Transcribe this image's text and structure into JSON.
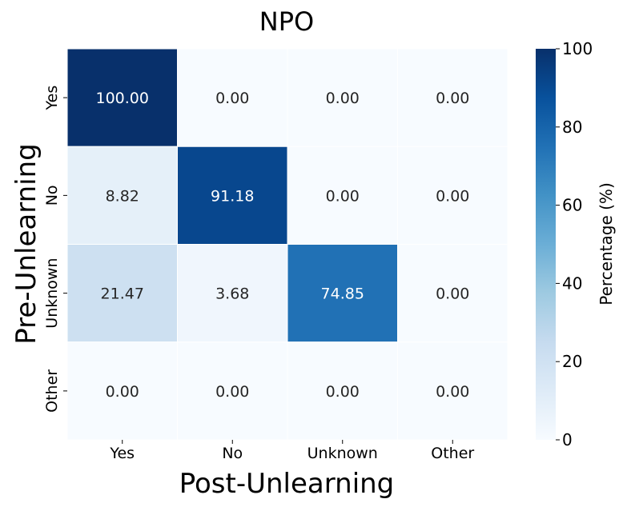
{
  "chart_data": {
    "type": "heatmap",
    "title": "NPO",
    "xlabel": "Post-Unlearning",
    "ylabel": "Pre-Unlearning",
    "x_categories": [
      "Yes",
      "No",
      "Unknown",
      "Other"
    ],
    "y_categories": [
      "Yes",
      "No",
      "Unknown",
      "Other"
    ],
    "values": [
      [
        100.0,
        0.0,
        0.0,
        0.0
      ],
      [
        8.82,
        91.18,
        0.0,
        0.0
      ],
      [
        21.47,
        3.68,
        74.85,
        0.0
      ],
      [
        0.0,
        0.0,
        0.0,
        0.0
      ]
    ],
    "value_labels": [
      [
        "100.00",
        "0.00",
        "0.00",
        "0.00"
      ],
      [
        "8.82",
        "91.18",
        "0.00",
        "0.00"
      ],
      [
        "21.47",
        "3.68",
        "74.85",
        "0.00"
      ],
      [
        "0.00",
        "0.00",
        "0.00",
        "0.00"
      ]
    ],
    "colorbar": {
      "label": "Percentage (%)",
      "range": [
        0,
        100
      ],
      "ticks": [
        0,
        20,
        40,
        60,
        80,
        100
      ],
      "tick_labels": [
        "0",
        "20",
        "40",
        "60",
        "80",
        "100"
      ],
      "colormap": "Blues"
    }
  }
}
